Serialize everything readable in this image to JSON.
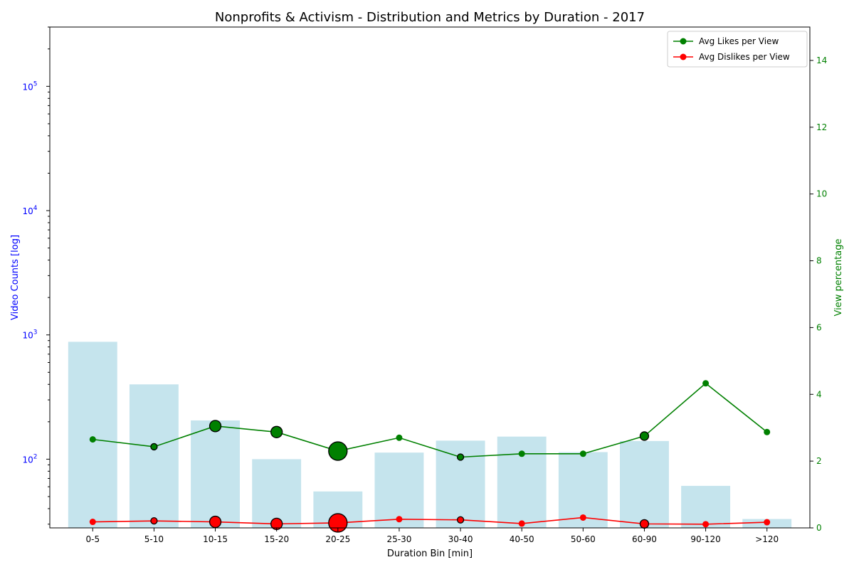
{
  "chart_data": {
    "type": "bar",
    "title": "Nonprofits & Activism - Distribution and Metrics by Duration - 2017",
    "xlabel": "Duration Bin [min]",
    "ylabel_left": "Video Counts [log]",
    "ylabel_right": "View percentage",
    "categories": [
      "0-5",
      "5-10",
      "10-15",
      "15-20",
      "20-25",
      "25-30",
      "30-40",
      "40-50",
      "50-60",
      "60-90",
      "90-120",
      ">120"
    ],
    "left_axis": {
      "scale": "log",
      "ylim": [
        28,
        300000
      ],
      "ticks": [
        {
          "value": 100,
          "label": "10",
          "exp": "2"
        },
        {
          "value": 1000,
          "label": "10",
          "exp": "3"
        },
        {
          "value": 10000,
          "label": "10",
          "exp": "4"
        },
        {
          "value": 100000,
          "label": "10",
          "exp": "5"
        }
      ]
    },
    "right_axis": {
      "scale": "linear",
      "ylim": [
        0,
        15
      ],
      "ticks": [
        0,
        2,
        4,
        6,
        8,
        10,
        12,
        14
      ]
    },
    "bars": {
      "name": "Video Counts",
      "values": [
        880,
        400,
        205,
        100,
        55,
        113,
        141,
        152,
        114,
        140,
        61,
        33
      ]
    },
    "series": [
      {
        "name": "Avg Likes per View",
        "values": [
          2.65,
          2.43,
          3.05,
          2.87,
          2.3,
          2.7,
          2.12,
          2.22,
          2.22,
          2.75,
          4.33,
          2.87
        ],
        "marker_sizes": [
          1,
          1,
          2,
          2,
          3,
          1,
          1,
          1,
          1,
          1.5,
          1,
          1
        ],
        "marker_edges": [
          false,
          true,
          true,
          true,
          true,
          false,
          true,
          false,
          false,
          true,
          false,
          false
        ]
      },
      {
        "name": "Avg Dislikes per View",
        "values": [
          0.18,
          0.21,
          0.18,
          0.12,
          0.15,
          0.26,
          0.24,
          0.13,
          0.31,
          0.12,
          0.11,
          0.17
        ],
        "marker_sizes": [
          1,
          1,
          2,
          2,
          3,
          1,
          1,
          1,
          1,
          1.5,
          1,
          1
        ],
        "marker_edges": [
          false,
          true,
          true,
          true,
          true,
          false,
          true,
          false,
          false,
          true,
          false,
          false
        ]
      }
    ],
    "legend": {
      "position": "top-right"
    },
    "colors": {
      "bars": "#add8e6",
      "likes": "#008000",
      "dislikes": "#ff0000",
      "left_axis": "#0000ff",
      "right_axis": "#008000"
    }
  }
}
